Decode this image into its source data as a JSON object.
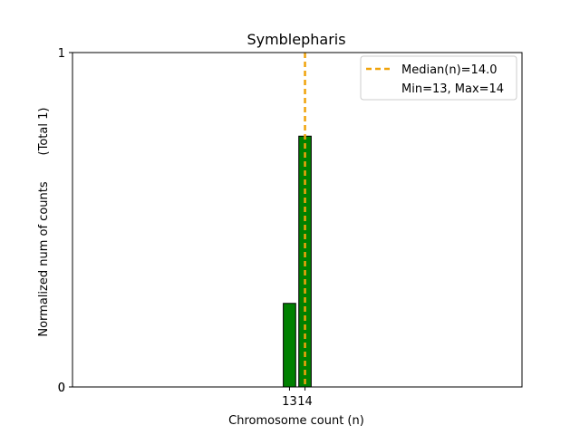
{
  "chart_data": {
    "type": "bar",
    "title": "Symblepharis",
    "xlabel": "Chromosome count (n)",
    "ylabel": "Normalized num of counts",
    "ylabel_note": "(Total 1)",
    "categories": [
      "13",
      "14"
    ],
    "x": [
      13,
      14
    ],
    "values": [
      0.25,
      0.75
    ],
    "xlim": [
      -1,
      28
    ],
    "ylim": [
      0,
      1
    ],
    "yticks": [
      "0",
      "0",
      "1"
    ],
    "bar_color": "#008000",
    "median": 14.0,
    "median_color": "#f0a30a",
    "legend": {
      "position": "upper-right",
      "entries": [
        "Median(n)=14.0",
        "Min=13, Max=14"
      ]
    },
    "grid": false
  }
}
